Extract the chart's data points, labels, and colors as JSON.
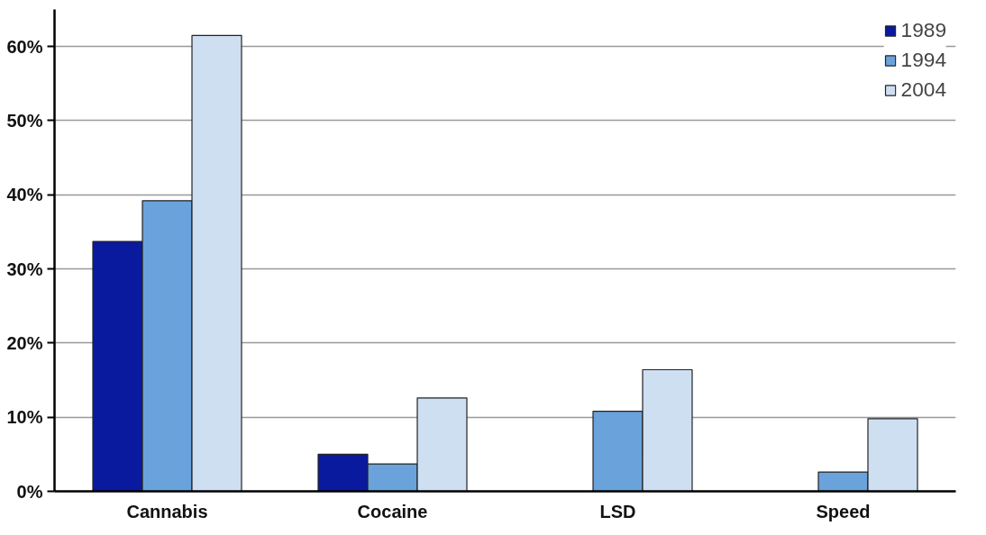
{
  "chart_data": {
    "type": "bar",
    "categories": [
      "Cannabis",
      "Cocaine",
      "LSD",
      "Speed"
    ],
    "series": [
      {
        "name": "1989",
        "color": "#0a1a9e",
        "values": [
          33.7,
          5.0,
          null,
          null
        ]
      },
      {
        "name": "1994",
        "color": "#6aa2dc",
        "values": [
          39.2,
          3.7,
          10.8,
          2.6
        ]
      },
      {
        "name": "2004",
        "color": "#cfdff2",
        "values": [
          61.5,
          12.6,
          16.4,
          9.8
        ]
      }
    ],
    "ylim": [
      0,
      65
    ],
    "yticks": [
      {
        "value": 0,
        "label": "0%"
      },
      {
        "value": 10,
        "label": "10%"
      },
      {
        "value": 20,
        "label": "20%"
      },
      {
        "value": 30,
        "label": "30%"
      },
      {
        "value": 40,
        "label": "40%"
      },
      {
        "value": 50,
        "label": "50%"
      },
      {
        "value": 60,
        "label": "60%"
      }
    ],
    "grid": "y",
    "legend": "top right"
  }
}
